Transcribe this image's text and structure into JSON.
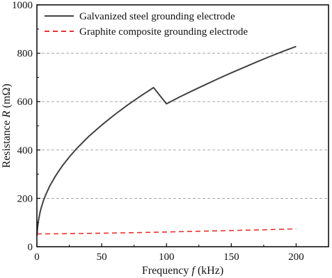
{
  "chart_data": {
    "type": "line",
    "xlabel": {
      "prefix": "Frequency ",
      "variable": "f",
      "suffix": " (kHz)"
    },
    "ylabel": {
      "prefix": "Resistance ",
      "variable": "R",
      "suffix": " (mΩ)"
    },
    "xlim": [
      0,
      225
    ],
    "ylim": [
      0,
      1000
    ],
    "x_ticks": [
      0,
      50,
      100,
      150,
      200
    ],
    "y_ticks": [
      0,
      200,
      400,
      600,
      800,
      1000
    ],
    "grid": {
      "horizontal": true,
      "vertical": false,
      "style": "dashed"
    },
    "legend_position": "top-left",
    "series": [
      {
        "name": "Galvanized steel grounding electrode",
        "color": "#404040",
        "line_style": "solid",
        "x": [
          0,
          0.5,
          1,
          2,
          3,
          5,
          7,
          10,
          15,
          20,
          25,
          30,
          40,
          50,
          60,
          70,
          80,
          90,
          100,
          110,
          120,
          130,
          140,
          150,
          160,
          170,
          180,
          190,
          200
        ],
        "y": [
          45,
          78,
          100,
          131,
          155,
          190,
          217,
          252,
          298,
          337,
          371,
          402,
          456,
          503,
          546,
          586,
          623,
          658,
          591,
          619,
          645,
          670,
          695,
          719,
          742,
          765,
          787,
          808,
          828
        ]
      },
      {
        "name": "Graphite composite grounding electrode",
        "color": "#e8302e",
        "line_style": "dashed",
        "x": [
          0,
          25,
          50,
          75,
          100,
          125,
          150,
          175,
          200
        ],
        "y": [
          53,
          54,
          56,
          58,
          61,
          64,
          67,
          70,
          74
        ]
      }
    ]
  }
}
